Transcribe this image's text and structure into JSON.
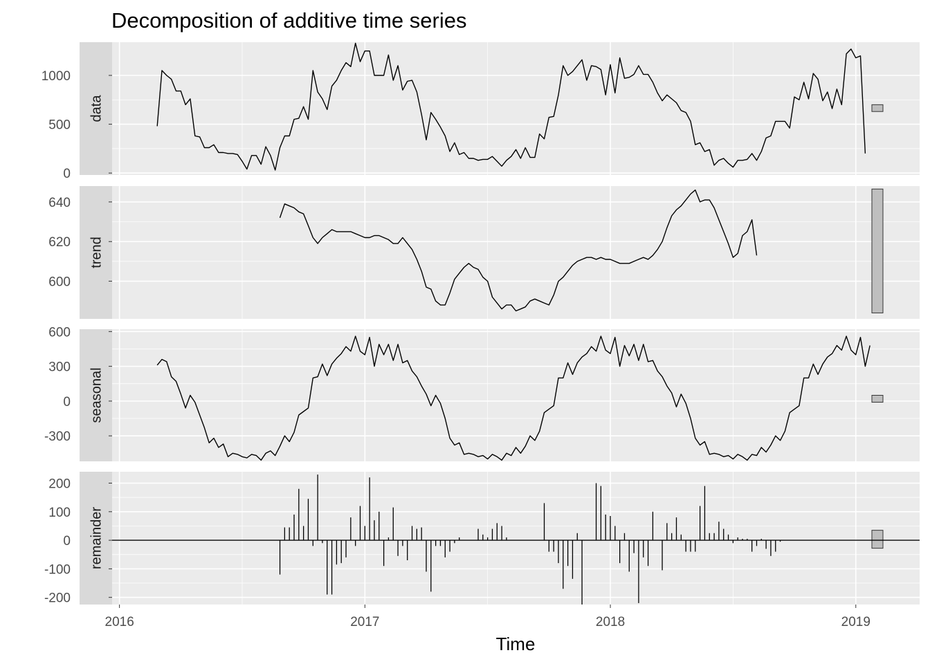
{
  "chart_data": {
    "type": "line",
    "title": "Decomposition of additive time series",
    "xlabel": "Time",
    "xlim": [
      2015.97,
      2019.26
    ],
    "x_ticks": [
      2016,
      2017,
      2018,
      2019
    ],
    "x_tick_labels": [
      "2016",
      "2017",
      "2018",
      "2019"
    ],
    "x_start": 2016.1538,
    "x_step": 0.01923,
    "grid": true,
    "panels": [
      {
        "name": "data",
        "ylim": [
          -20,
          1340
        ],
        "yticks": [
          0,
          500,
          1000
        ],
        "ytick_labels": [
          "0",
          "500",
          "1000"
        ],
        "range_bar": [
          630,
          700
        ],
        "values": [
          480,
          1050,
          1000,
          960,
          840,
          840,
          700,
          760,
          380,
          370,
          260,
          260,
          290,
          210,
          210,
          200,
          200,
          190,
          120,
          40,
          180,
          180,
          90,
          270,
          180,
          30,
          260,
          380,
          380,
          550,
          560,
          680,
          550,
          1050,
          830,
          760,
          650,
          890,
          950,
          1050,
          1130,
          1090,
          1330,
          1140,
          1250,
          1250,
          1000,
          1000,
          1000,
          1210,
          950,
          1100,
          850,
          940,
          950,
          830,
          600,
          340,
          620,
          550,
          470,
          380,
          220,
          310,
          190,
          210,
          150,
          150,
          130,
          140,
          140,
          170,
          120,
          70,
          130,
          170,
          240,
          150,
          260,
          160,
          160,
          400,
          350,
          570,
          580,
          800,
          1100,
          1000,
          1040,
          1100,
          1160,
          950,
          1100,
          1090,
          1060,
          800,
          1110,
          820,
          1180,
          970,
          980,
          1010,
          1100,
          1010,
          1010,
          930,
          820,
          740,
          800,
          760,
          720,
          640,
          620,
          530,
          290,
          310,
          220,
          240,
          80,
          130,
          150,
          100,
          60,
          130,
          130,
          140,
          200,
          130,
          220,
          360,
          380,
          530,
          530,
          530,
          460,
          780,
          750,
          930,
          760,
          1020,
          960,
          740,
          830,
          660,
          860,
          700,
          1220,
          1270,
          1180,
          1200,
          200
        ]
      },
      {
        "name": "trend",
        "ylim": [
          581,
          648
        ],
        "yticks": [
          600,
          620,
          640
        ],
        "ytick_labels": [
          "600",
          "620",
          "640"
        ],
        "range_bar": [
          584,
          646.5
        ],
        "first_index": 26,
        "values": [
          632,
          639,
          638,
          637,
          635,
          634,
          628,
          622,
          619,
          622,
          624,
          626,
          625,
          625,
          625,
          625,
          624,
          623,
          622,
          622,
          623,
          623,
          622,
          621,
          619,
          619,
          622,
          619,
          616,
          611,
          605,
          597,
          596,
          590,
          588,
          588,
          594,
          601,
          604,
          607,
          609,
          607,
          606,
          602,
          600,
          592,
          589,
          586,
          588,
          588,
          585,
          586,
          587,
          590,
          591,
          590,
          589,
          588,
          593,
          600,
          602,
          605,
          608,
          610,
          611,
          612,
          612,
          611,
          612,
          611,
          611,
          610,
          609,
          609,
          609,
          610,
          611,
          612,
          611,
          613,
          616,
          620,
          627,
          633,
          636,
          638,
          641,
          644,
          646,
          640,
          641,
          641,
          637,
          631,
          625,
          619,
          612,
          614,
          623,
          625,
          631,
          613
        ]
      },
      {
        "name": "seasonal",
        "ylim": [
          -520,
          620
        ],
        "yticks": [
          -300,
          0,
          300,
          600
        ],
        "ytick_labels": [
          "-300",
          "0",
          "300",
          "600"
        ],
        "range_bar": [
          -10,
          50
        ],
        "values": [
          310,
          360,
          340,
          210,
          170,
          60,
          -60,
          50,
          -10,
          -120,
          -230,
          -360,
          -320,
          -400,
          -370,
          -480,
          -450,
          -460,
          -480,
          -490,
          -460,
          -470,
          -510,
          -450,
          -430,
          -470,
          -390,
          -300,
          -350,
          -270,
          -120,
          -90,
          -60,
          200,
          210,
          320,
          220,
          320,
          370,
          410,
          470,
          430,
          560,
          430,
          400,
          550,
          300,
          490,
          400,
          490,
          350,
          490,
          330,
          350,
          260,
          210,
          130,
          60,
          -40,
          50,
          -20,
          -150,
          -320,
          -380,
          -360,
          -460,
          -450,
          -460,
          -480,
          -470,
          -500,
          -460,
          -480,
          -510,
          -450,
          -470,
          -400,
          -450,
          -390,
          -300,
          -340,
          -260,
          -100,
          -70,
          -40,
          200,
          200,
          330,
          230,
          330,
          380,
          410,
          470,
          430,
          560,
          440,
          410,
          550,
          300,
          480,
          390,
          490,
          350,
          490,
          340,
          350,
          260,
          210,
          130,
          70,
          -50,
          60,
          -20,
          -150,
          -320,
          -380,
          -350,
          -460,
          -450,
          -460,
          -480,
          -470,
          -500,
          -460,
          -480,
          -510,
          -460,
          -470,
          -400,
          -440,
          -380,
          -300,
          -340,
          -260,
          -100,
          -70,
          -40,
          200,
          200,
          320,
          230,
          320,
          380,
          410,
          480,
          440,
          560,
          440,
          400,
          550,
          300,
          480
        ]
      },
      {
        "name": "remainder",
        "ylim": [
          -225,
          240
        ],
        "yticks": [
          -200,
          -100,
          0,
          100,
          200
        ],
        "ytick_labels": [
          "-200",
          "-100",
          "0",
          "100",
          "200"
        ],
        "range_bar": [
          -28,
          35
        ],
        "baseline": 0,
        "first_index": 26,
        "values": [
          -120,
          45,
          45,
          90,
          180,
          50,
          145,
          -20,
          230,
          -10,
          -190,
          -190,
          -85,
          -80,
          -60,
          80,
          -20,
          120,
          50,
          220,
          70,
          100,
          -90,
          10,
          115,
          -55,
          -20,
          -70,
          50,
          40,
          45,
          -110,
          -180,
          -20,
          -20,
          -60,
          -40,
          -10,
          10,
          0,
          0,
          0,
          40,
          20,
          10,
          40,
          60,
          50,
          10,
          0,
          0,
          0,
          0,
          0,
          0,
          0,
          130,
          -40,
          -40,
          -80,
          -170,
          -90,
          -135,
          25,
          -225,
          0,
          0,
          200,
          190,
          90,
          85,
          50,
          -80,
          25,
          -110,
          -45,
          -220,
          -60,
          -90,
          100,
          0,
          -105,
          60,
          25,
          80,
          20,
          -40,
          -40,
          -40,
          120,
          190,
          25,
          25,
          65,
          40,
          20,
          -10,
          10,
          5,
          5,
          -40,
          -20,
          5,
          -30,
          -55,
          -40,
          -5
        ]
      }
    ]
  }
}
